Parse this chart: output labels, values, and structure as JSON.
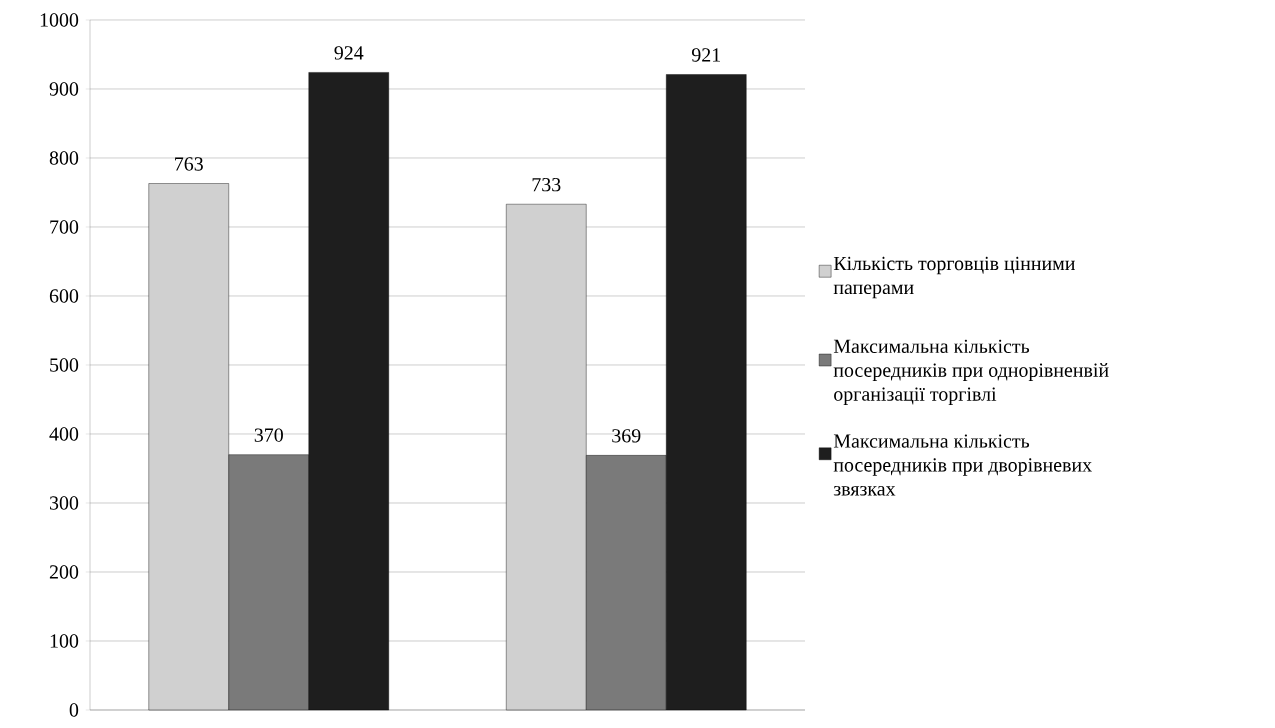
{
  "chart_data": {
    "type": "bar",
    "categories": [
      null,
      null
    ],
    "series": [
      {
        "name": "Кількість торговців цінними паперами",
        "color": "#d0d0d0",
        "values": [
          763,
          733
        ]
      },
      {
        "name": "Максимальна кількість посередників при однорівненвій організації торгівлі",
        "color": "#7a7a7a",
        "values": [
          370,
          369
        ]
      },
      {
        "name": "Максимальна кількість посередників при дворівневих звязках",
        "color": "#1e1e1e",
        "values": [
          924,
          921
        ]
      }
    ],
    "ylim": [
      0,
      1000
    ],
    "yticks": [
      0,
      100,
      200,
      300,
      400,
      500,
      600,
      700,
      800,
      900,
      1000
    ],
    "grid": "y",
    "legend": "right",
    "data_labels": true
  }
}
